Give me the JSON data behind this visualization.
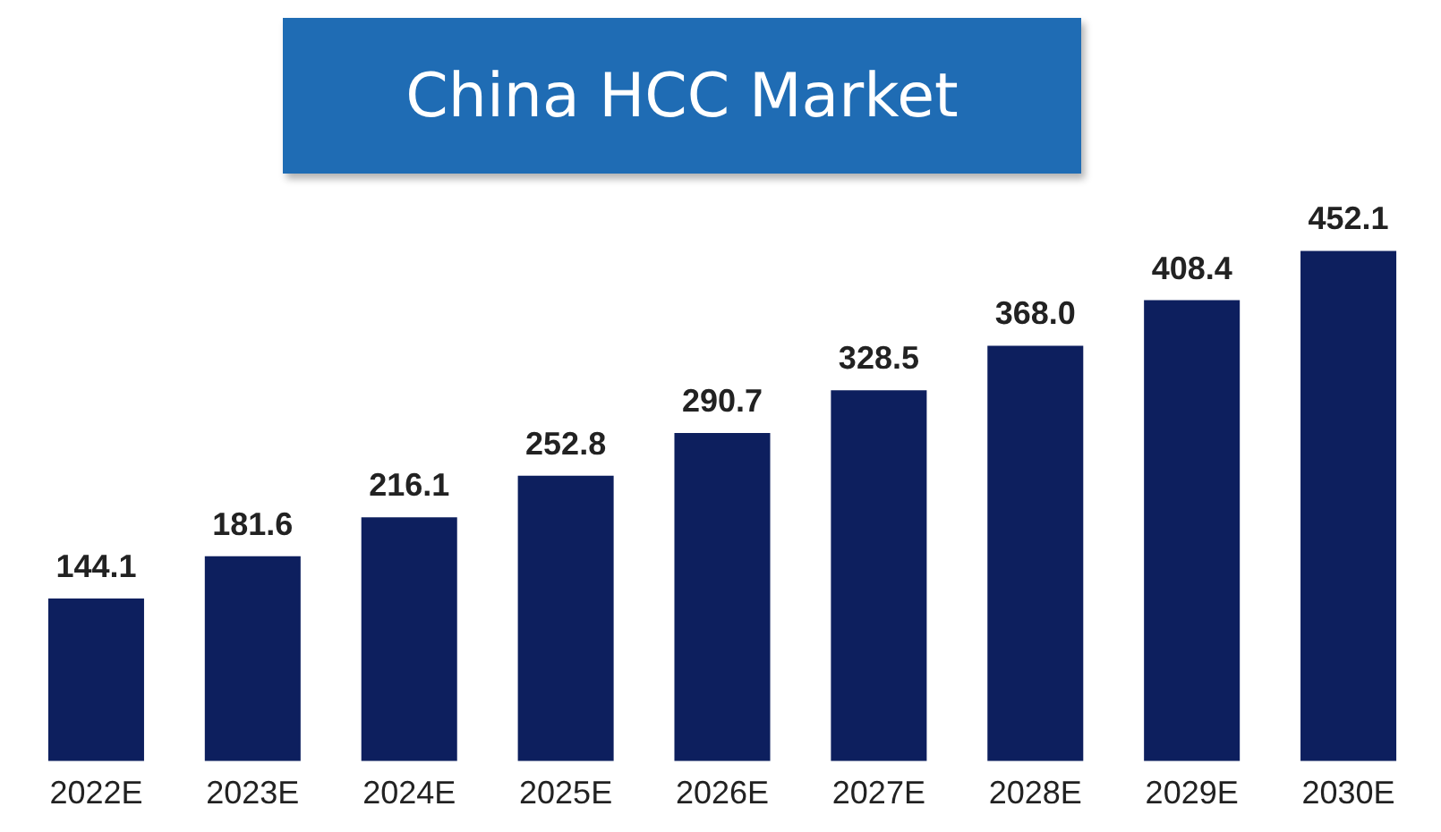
{
  "chart_data": {
    "type": "bar",
    "title": "China HCC Market",
    "categories": [
      "2022E",
      "2023E",
      "2024E",
      "2025E",
      "2026E",
      "2027E",
      "2028E",
      "2029E",
      "2030E"
    ],
    "values": [
      144.1,
      181.6,
      216.1,
      252.8,
      290.7,
      328.5,
      368.0,
      408.4,
      452.1
    ],
    "value_labels": [
      "144.1",
      "181.6",
      "216.1",
      "252.8",
      "290.7",
      "328.5",
      "368.0",
      "408.4",
      "452.1"
    ],
    "color": "#0d1f5e",
    "grid": false,
    "legend": false,
    "tick_labels": "x"
  }
}
